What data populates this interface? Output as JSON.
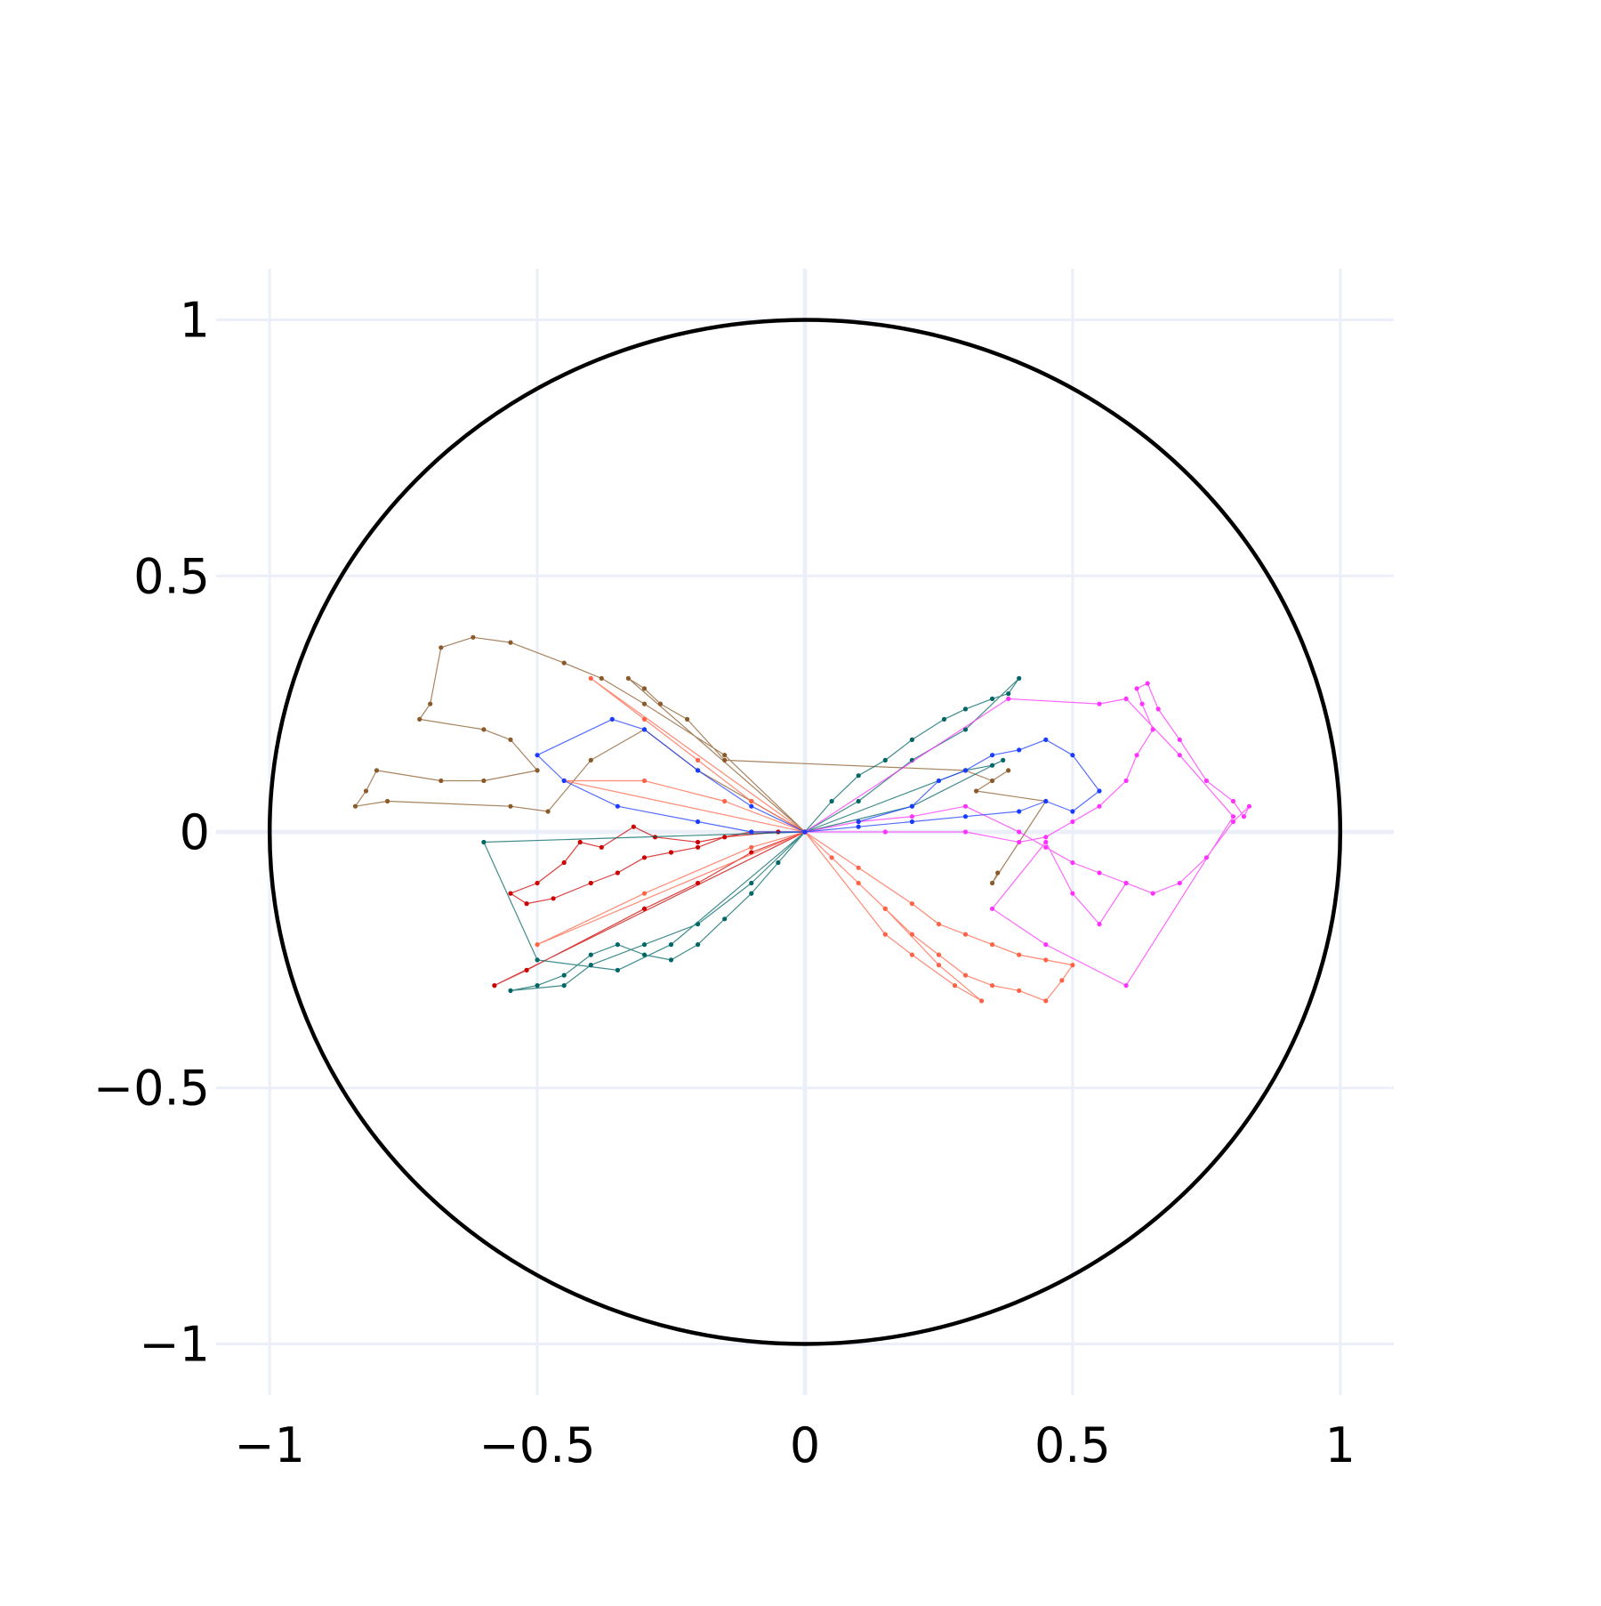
{
  "chart_data": {
    "type": "scatter",
    "title": "",
    "xlabel": "",
    "ylabel": "",
    "xlim": [
      -1.1,
      1.1
    ],
    "ylim": [
      -1.1,
      1.1
    ],
    "x_ticks": [
      -1,
      -0.5,
      0,
      0.5,
      1
    ],
    "y_ticks": [
      -1,
      -0.5,
      0,
      0.5,
      1
    ],
    "x_tick_labels": [
      "−1",
      "−0.5",
      "0",
      "0.5",
      "1"
    ],
    "y_tick_labels": [
      "−1",
      "−0.5",
      "0",
      "0.5",
      "1"
    ],
    "grid": true,
    "legend": "none",
    "mode": "lines+markers",
    "shapes": [
      {
        "type": "circle",
        "center": [
          0,
          0
        ],
        "radius": 1,
        "color": "#000000"
      }
    ],
    "series": [
      {
        "color": "#8b5a2b",
        "points": [
          [
            0,
            0
          ],
          [
            -0.15,
            0.15
          ],
          [
            -0.3,
            0.25
          ],
          [
            -0.38,
            0.3
          ],
          [
            -0.45,
            0.33
          ],
          [
            -0.55,
            0.37
          ],
          [
            -0.62,
            0.38
          ],
          [
            -0.68,
            0.36
          ],
          [
            -0.7,
            0.25
          ],
          [
            -0.72,
            0.22
          ],
          [
            -0.6,
            0.2
          ],
          [
            -0.55,
            0.18
          ],
          [
            -0.5,
            0.12
          ],
          [
            -0.6,
            0.1
          ],
          [
            -0.68,
            0.1
          ],
          [
            -0.8,
            0.12
          ],
          [
            -0.82,
            0.08
          ],
          [
            -0.84,
            0.05
          ],
          [
            -0.78,
            0.06
          ],
          [
            -0.55,
            0.05
          ],
          [
            -0.48,
            0.04
          ],
          [
            -0.4,
            0.14
          ],
          [
            -0.3,
            0.2
          ],
          [
            -0.2,
            0.12
          ],
          [
            -0.1,
            0.06
          ],
          [
            0,
            0
          ],
          [
            -0.33,
            0.3
          ],
          [
            -0.3,
            0.28
          ],
          [
            -0.27,
            0.25
          ],
          [
            -0.22,
            0.22
          ],
          [
            -0.15,
            0.14
          ],
          [
            0.3,
            0.12
          ],
          [
            0.35,
            0.1
          ],
          [
            0.38,
            0.12
          ],
          [
            0.32,
            0.08
          ],
          [
            0.45,
            0.06
          ],
          [
            0.35,
            -0.1
          ],
          [
            0.36,
            -0.08
          ]
        ]
      },
      {
        "color": "#cc0000",
        "points": [
          [
            0,
            0
          ],
          [
            -0.1,
            0.0
          ],
          [
            -0.2,
            -0.02
          ],
          [
            -0.28,
            -0.01
          ],
          [
            -0.32,
            0.01
          ],
          [
            -0.38,
            -0.03
          ],
          [
            -0.42,
            -0.02
          ],
          [
            -0.45,
            -0.06
          ],
          [
            -0.5,
            -0.1
          ],
          [
            -0.55,
            -0.12
          ],
          [
            -0.52,
            -0.14
          ],
          [
            -0.47,
            -0.13
          ],
          [
            -0.4,
            -0.1
          ],
          [
            -0.35,
            -0.08
          ],
          [
            -0.3,
            -0.05
          ],
          [
            -0.25,
            -0.04
          ],
          [
            -0.2,
            -0.03
          ],
          [
            -0.15,
            -0.01
          ],
          [
            -0.05,
            0.0
          ],
          [
            0,
            0
          ],
          [
            -0.58,
            -0.3
          ],
          [
            -0.52,
            -0.27
          ],
          [
            -0.3,
            -0.15
          ],
          [
            -0.2,
            -0.1
          ],
          [
            -0.1,
            -0.04
          ],
          [
            0,
            0
          ]
        ]
      },
      {
        "color": "#006666",
        "points": [
          [
            0,
            0
          ],
          [
            0.05,
            0.06
          ],
          [
            0.1,
            0.11
          ],
          [
            0.15,
            0.14
          ],
          [
            0.2,
            0.18
          ],
          [
            0.26,
            0.22
          ],
          [
            0.3,
            0.24
          ],
          [
            0.35,
            0.26
          ],
          [
            0.38,
            0.27
          ],
          [
            0.4,
            0.3
          ],
          [
            0.3,
            0.2
          ],
          [
            0.2,
            0.14
          ],
          [
            0.1,
            0.06
          ],
          [
            0,
            0
          ],
          [
            -0.05,
            -0.06
          ],
          [
            -0.1,
            -0.12
          ],
          [
            -0.15,
            -0.17
          ],
          [
            -0.2,
            -0.22
          ],
          [
            -0.25,
            -0.25
          ],
          [
            -0.3,
            -0.24
          ],
          [
            -0.35,
            -0.22
          ],
          [
            -0.4,
            -0.24
          ],
          [
            -0.45,
            -0.28
          ],
          [
            -0.5,
            -0.3
          ],
          [
            -0.55,
            -0.31
          ],
          [
            -0.45,
            -0.3
          ],
          [
            -0.4,
            -0.26
          ],
          [
            -0.3,
            -0.22
          ],
          [
            -0.2,
            -0.18
          ],
          [
            -0.1,
            -0.1
          ],
          [
            0,
            0
          ],
          [
            -0.6,
            -0.02
          ],
          [
            -0.5,
            -0.25
          ],
          [
            -0.35,
            -0.27
          ],
          [
            -0.25,
            -0.22
          ],
          [
            0,
            0
          ],
          [
            0.3,
            0.12
          ],
          [
            0.35,
            0.13
          ],
          [
            0.37,
            0.14
          ],
          [
            0.2,
            0.05
          ],
          [
            0,
            0
          ]
        ]
      },
      {
        "color": "#ff6347",
        "points": [
          [
            0,
            0
          ],
          [
            0.05,
            -0.05
          ],
          [
            0.1,
            -0.1
          ],
          [
            0.15,
            -0.15
          ],
          [
            0.2,
            -0.2
          ],
          [
            0.25,
            -0.24
          ],
          [
            0.3,
            -0.28
          ],
          [
            0.35,
            -0.3
          ],
          [
            0.4,
            -0.31
          ],
          [
            0.45,
            -0.33
          ],
          [
            0.48,
            -0.29
          ],
          [
            0.5,
            -0.26
          ],
          [
            0.45,
            -0.25
          ],
          [
            0.4,
            -0.24
          ],
          [
            0.35,
            -0.22
          ],
          [
            0.3,
            -0.2
          ],
          [
            0.25,
            -0.18
          ],
          [
            0.2,
            -0.14
          ],
          [
            0.1,
            -0.07
          ],
          [
            0,
            0
          ],
          [
            0.15,
            -0.2
          ],
          [
            0.2,
            -0.24
          ],
          [
            0.28,
            -0.3
          ],
          [
            0.33,
            -0.33
          ],
          [
            0.25,
            -0.26
          ],
          [
            0.15,
            -0.15
          ],
          [
            0,
            0
          ],
          [
            -0.4,
            0.3
          ],
          [
            -0.3,
            0.22
          ],
          [
            -0.2,
            0.14
          ],
          [
            -0.1,
            0.06
          ],
          [
            0,
            0
          ],
          [
            -0.45,
            0.1
          ],
          [
            -0.3,
            0.1
          ],
          [
            -0.15,
            0.06
          ],
          [
            0,
            0
          ],
          [
            -0.5,
            -0.22
          ],
          [
            -0.3,
            -0.12
          ],
          [
            -0.1,
            -0.03
          ],
          [
            0,
            0
          ]
        ]
      },
      {
        "color": "#ff33ff",
        "points": [
          [
            0,
            0
          ],
          [
            0.15,
            0.0
          ],
          [
            0.3,
            0.0
          ],
          [
            0.4,
            -0.02
          ],
          [
            0.45,
            -0.01
          ],
          [
            0.5,
            0.02
          ],
          [
            0.55,
            0.05
          ],
          [
            0.6,
            0.1
          ],
          [
            0.62,
            0.15
          ],
          [
            0.65,
            0.2
          ],
          [
            0.63,
            0.25
          ],
          [
            0.62,
            0.28
          ],
          [
            0.64,
            0.29
          ],
          [
            0.66,
            0.24
          ],
          [
            0.7,
            0.18
          ],
          [
            0.75,
            0.1
          ],
          [
            0.8,
            0.06
          ],
          [
            0.82,
            0.03
          ],
          [
            0.83,
            0.05
          ],
          [
            0.8,
            0.02
          ],
          [
            0.75,
            -0.05
          ],
          [
            0.7,
            -0.1
          ],
          [
            0.65,
            -0.12
          ],
          [
            0.6,
            -0.1
          ],
          [
            0.55,
            -0.08
          ],
          [
            0.5,
            -0.06
          ],
          [
            0.45,
            -0.03
          ],
          [
            0.4,
            0.0
          ],
          [
            0.3,
            0.05
          ],
          [
            0.2,
            0.03
          ],
          [
            0.1,
            0.02
          ],
          [
            0,
            0
          ],
          [
            0.38,
            0.26
          ],
          [
            0.55,
            0.25
          ],
          [
            0.6,
            0.26
          ],
          [
            0.7,
            0.15
          ],
          [
            0.8,
            0.03
          ],
          [
            0.6,
            -0.3
          ],
          [
            0.45,
            -0.22
          ],
          [
            0.35,
            -0.15
          ],
          [
            0.45,
            -0.02
          ],
          [
            0.5,
            -0.12
          ],
          [
            0.55,
            -0.18
          ],
          [
            0.6,
            -0.1
          ]
        ]
      },
      {
        "color": "#1a3cff",
        "points": [
          [
            0.1,
            0.02
          ],
          [
            0.2,
            0.05
          ],
          [
            0.25,
            0.1
          ],
          [
            0.3,
            0.12
          ],
          [
            0.35,
            0.15
          ],
          [
            0.4,
            0.16
          ],
          [
            0.45,
            0.18
          ],
          [
            0.5,
            0.15
          ],
          [
            0.55,
            0.08
          ],
          [
            0.5,
            0.04
          ],
          [
            0.45,
            0.06
          ],
          [
            0.4,
            0.04
          ],
          [
            0.3,
            0.03
          ],
          [
            0.2,
            0.02
          ],
          [
            0.1,
            0.01
          ],
          [
            0.0,
            0.0
          ],
          [
            -0.1,
            0.05
          ],
          [
            -0.2,
            0.12
          ],
          [
            -0.3,
            0.2
          ],
          [
            -0.36,
            0.22
          ],
          [
            -0.5,
            0.15
          ],
          [
            -0.45,
            0.1
          ],
          [
            -0.35,
            0.05
          ],
          [
            -0.2,
            0.02
          ],
          [
            -0.1,
            0.0
          ],
          [
            0,
            0
          ]
        ]
      }
    ]
  }
}
